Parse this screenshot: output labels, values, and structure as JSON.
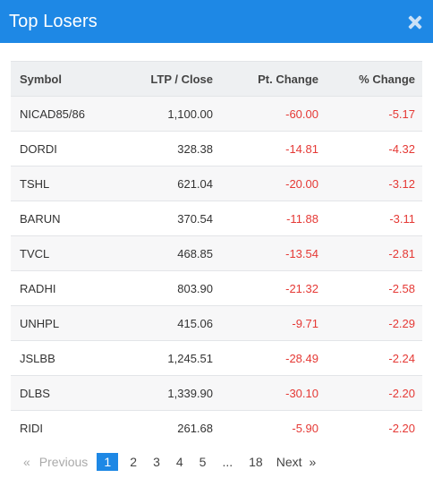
{
  "header": {
    "title": "Top Losers",
    "close_icon": "close-icon"
  },
  "table": {
    "columns": [
      "Symbol",
      "LTP / Close",
      "Pt. Change",
      "% Change"
    ],
    "rows": [
      {
        "symbol": "NICAD85/86",
        "ltp": "1,100.00",
        "pt": "-60.00",
        "pct": "-5.17"
      },
      {
        "symbol": "DORDI",
        "ltp": "328.38",
        "pt": "-14.81",
        "pct": "-4.32"
      },
      {
        "symbol": "TSHL",
        "ltp": "621.04",
        "pt": "-20.00",
        "pct": "-3.12"
      },
      {
        "symbol": "BARUN",
        "ltp": "370.54",
        "pt": "-11.88",
        "pct": "-3.11"
      },
      {
        "symbol": "TVCL",
        "ltp": "468.85",
        "pt": "-13.54",
        "pct": "-2.81"
      },
      {
        "symbol": "RADHI",
        "ltp": "803.90",
        "pt": "-21.32",
        "pct": "-2.58"
      },
      {
        "symbol": "UNHPL",
        "ltp": "415.06",
        "pt": "-9.71",
        "pct": "-2.29"
      },
      {
        "symbol": "JSLBB",
        "ltp": "1,245.51",
        "pt": "-28.49",
        "pct": "-2.24"
      },
      {
        "symbol": "DLBS",
        "ltp": "1,339.90",
        "pt": "-30.10",
        "pct": "-2.20"
      },
      {
        "symbol": "RIDI",
        "ltp": "261.68",
        "pt": "-5.90",
        "pct": "-2.20"
      }
    ]
  },
  "pagination": {
    "prev_arrow": "«",
    "prev_label": "Previous",
    "pages": [
      "1",
      "2",
      "3",
      "4",
      "5"
    ],
    "ellipsis": "...",
    "last_page": "18",
    "next_label": "Next",
    "next_arrow": "»",
    "current_page": "1"
  },
  "colors": {
    "accent": "#1e88e5",
    "negative": "#e53935"
  }
}
